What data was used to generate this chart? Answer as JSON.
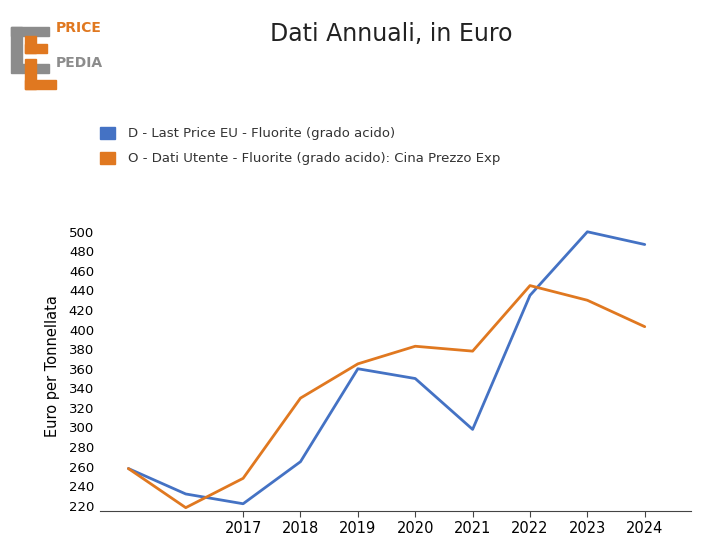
{
  "title": "Dati Annuali, in Euro",
  "ylabel": "Euro per Tonnellata",
  "blue_label": "D - Last Price EU - Fluorite (grado acido)",
  "orange_label": "O - Dati Utente - Fluorite (grado acido): Cina Prezzo Exp",
  "blue_color": "#4472c4",
  "orange_color": "#e07820",
  "gray_color": "#8c8c8c",
  "years_blue": [
    2015,
    2016,
    2017,
    2018,
    2019,
    2020,
    2021,
    2022,
    2023,
    2024
  ],
  "values_blue": [
    258,
    232,
    222,
    265,
    360,
    350,
    298,
    435,
    500,
    487
  ],
  "years_orange": [
    2015,
    2016,
    2017,
    2018,
    2019,
    2020,
    2021,
    2022,
    2023,
    2024
  ],
  "values_orange": [
    258,
    218,
    248,
    330,
    365,
    383,
    378,
    445,
    430,
    403
  ],
  "ylim": [
    215,
    510
  ],
  "yticks": [
    220,
    240,
    260,
    280,
    300,
    320,
    340,
    360,
    380,
    400,
    420,
    440,
    460,
    480,
    500
  ],
  "xlim": [
    2014.5,
    2024.8
  ],
  "xticks": [
    2017,
    2018,
    2019,
    2020,
    2021,
    2022,
    2023,
    2024
  ],
  "bg_color": "#ffffff"
}
